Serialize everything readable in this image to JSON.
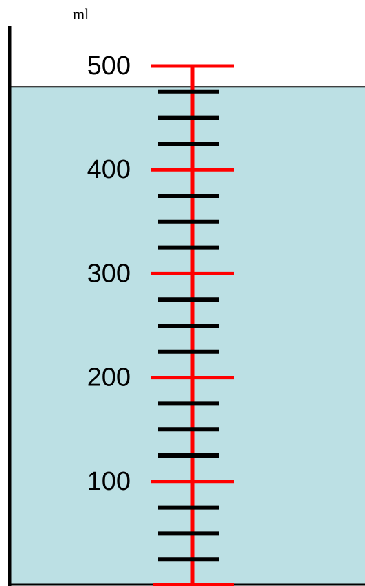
{
  "unit": "ml",
  "scale": {
    "min": 0,
    "max": 500,
    "minor_step": 25,
    "major_step": 100
  },
  "liquid_level": 480,
  "major_labels": [
    "100",
    "200",
    "300",
    "400",
    "500"
  ],
  "colors": {
    "liquid": "#bce0e4",
    "major_tick": "#ff0000",
    "minor_tick": "#000000",
    "wall": "#000000",
    "background": "#ffffff"
  }
}
